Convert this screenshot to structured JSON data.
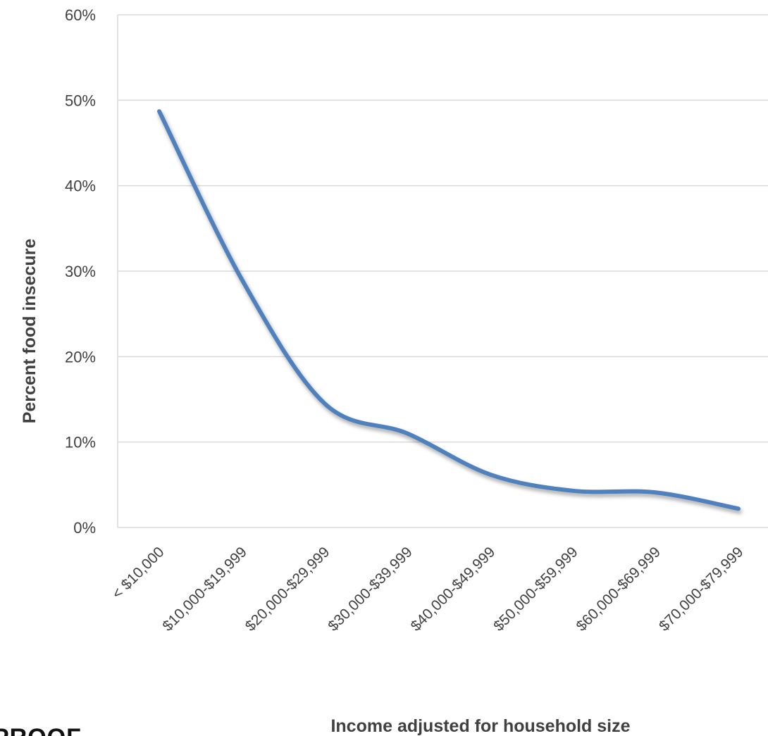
{
  "chart_data": {
    "type": "line",
    "title": "",
    "xlabel": "Income adjusted for household size",
    "ylabel": "Percent food insecure",
    "categories": [
      "< $10,000",
      "$10,000-$19,999",
      "$20,000-$29,999",
      "$30,000-$39,999",
      "$40,000-$49,999",
      "$50,000-$59,999",
      "$60,000-$69,999",
      "$70,000-$79,999"
    ],
    "series": [
      {
        "values": [
          48.7,
          29.0,
          14.5,
          11.0,
          6.2,
          4.3,
          4.1,
          2.2
        ],
        "color": "#4F81BD"
      }
    ],
    "ylim": [
      0,
      60
    ],
    "yticks": [
      0,
      10,
      20,
      30,
      40,
      50,
      60
    ],
    "ytick_labels": [
      "0%",
      "10%",
      "20%",
      "30%",
      "40%",
      "50%",
      "60%"
    ],
    "grid": true,
    "smooth": true,
    "legend": "none"
  },
  "logo": {
    "text": "PROOF"
  }
}
